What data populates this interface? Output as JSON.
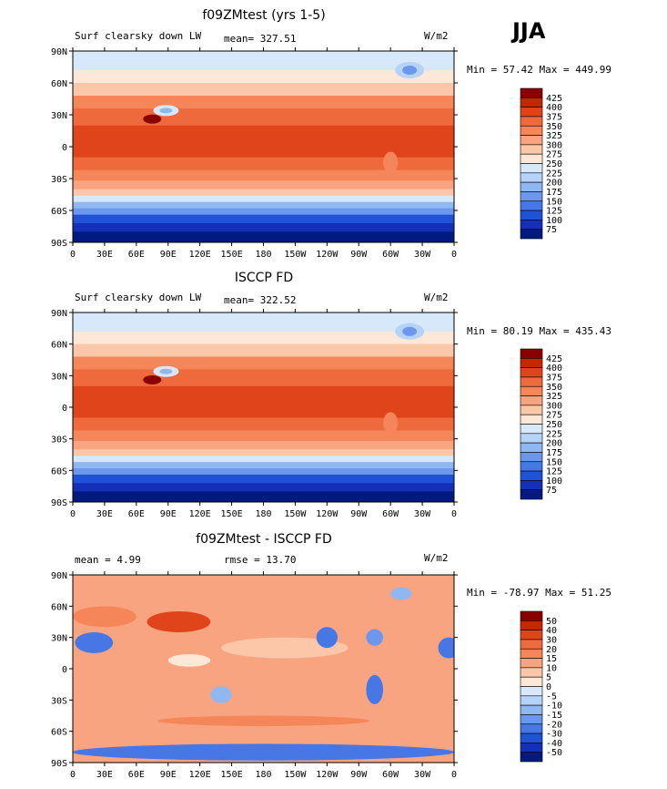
{
  "season": "JJA",
  "x_ticks": [
    "0",
    "30E",
    "60E",
    "90E",
    "120E",
    "150E",
    "180",
    "150W",
    "120W",
    "90W",
    "60W",
    "30W",
    "0"
  ],
  "y_ticks": [
    "90N",
    "60N",
    "30N",
    "0",
    "30S",
    "60S",
    "90S"
  ],
  "chart_data": [
    {
      "type": "heatmap",
      "title": "f09ZMtest (yrs 1-5)",
      "left_label": "Surf clearsky down LW",
      "stat_label": "mean= 327.51",
      "units": "W/m2",
      "minmax": "Min =  57.42 Max = 449.99",
      "min": 57.42,
      "max": 449.99,
      "mean": 327.51,
      "xlim": [
        0,
        360
      ],
      "ylim": [
        -90,
        90
      ],
      "colorbar_levels": [
        "425",
        "400",
        "375",
        "350",
        "325",
        "300",
        "275",
        "250",
        "225",
        "200",
        "175",
        "150",
        "125",
        "100",
        "75"
      ],
      "colorbar_colors": [
        "#8b0000",
        "#c42800",
        "#e0441a",
        "#ee6a3c",
        "#f5865a",
        "#f9a480",
        "#fcc6a8",
        "#fde7d7",
        "#d6e8fa",
        "#b5d3f7",
        "#8fb7f2",
        "#6b98ec",
        "#4677e4",
        "#1f52d6",
        "#1430b8",
        "#001a80"
      ]
    },
    {
      "type": "heatmap",
      "title": "ISCCP FD",
      "left_label": "Surf clearsky down LW",
      "stat_label": "mean= 322.52",
      "units": "W/m2",
      "minmax": "Min =  80.19 Max = 435.43",
      "min": 80.19,
      "max": 435.43,
      "mean": 322.52,
      "xlim": [
        0,
        360
      ],
      "ylim": [
        -90,
        90
      ],
      "colorbar_levels": [
        "425",
        "400",
        "375",
        "350",
        "325",
        "300",
        "275",
        "250",
        "225",
        "200",
        "175",
        "150",
        "125",
        "100",
        "75"
      ],
      "colorbar_colors": [
        "#8b0000",
        "#c42800",
        "#e0441a",
        "#ee6a3c",
        "#f5865a",
        "#f9a480",
        "#fcc6a8",
        "#fde7d7",
        "#d6e8fa",
        "#b5d3f7",
        "#8fb7f2",
        "#6b98ec",
        "#4677e4",
        "#1f52d6",
        "#1430b8",
        "#001a80"
      ]
    },
    {
      "type": "heatmap",
      "title": "f09ZMtest - ISCCP FD",
      "left_label": "mean =    4.99",
      "stat_label": "rmse =   13.70",
      "units": "W/m2",
      "minmax": "Min = -78.97 Max =  51.25",
      "min": -78.97,
      "max": 51.25,
      "mean": 4.99,
      "rmse": 13.7,
      "xlim": [
        0,
        360
      ],
      "ylim": [
        -90,
        90
      ],
      "colorbar_levels": [
        "50",
        "40",
        "30",
        "20",
        "15",
        "10",
        "5",
        "0",
        "-5",
        "-10",
        "-15",
        "-20",
        "-30",
        "-40",
        "-50"
      ],
      "colorbar_colors": [
        "#8b0000",
        "#c42800",
        "#e0441a",
        "#ee6a3c",
        "#f5865a",
        "#f9a480",
        "#fcc6a8",
        "#fde7d7",
        "#d6e8fa",
        "#b5d3f7",
        "#8fb7f2",
        "#6b98ec",
        "#4677e4",
        "#1f52d6",
        "#1430b8",
        "#001a80"
      ]
    }
  ]
}
